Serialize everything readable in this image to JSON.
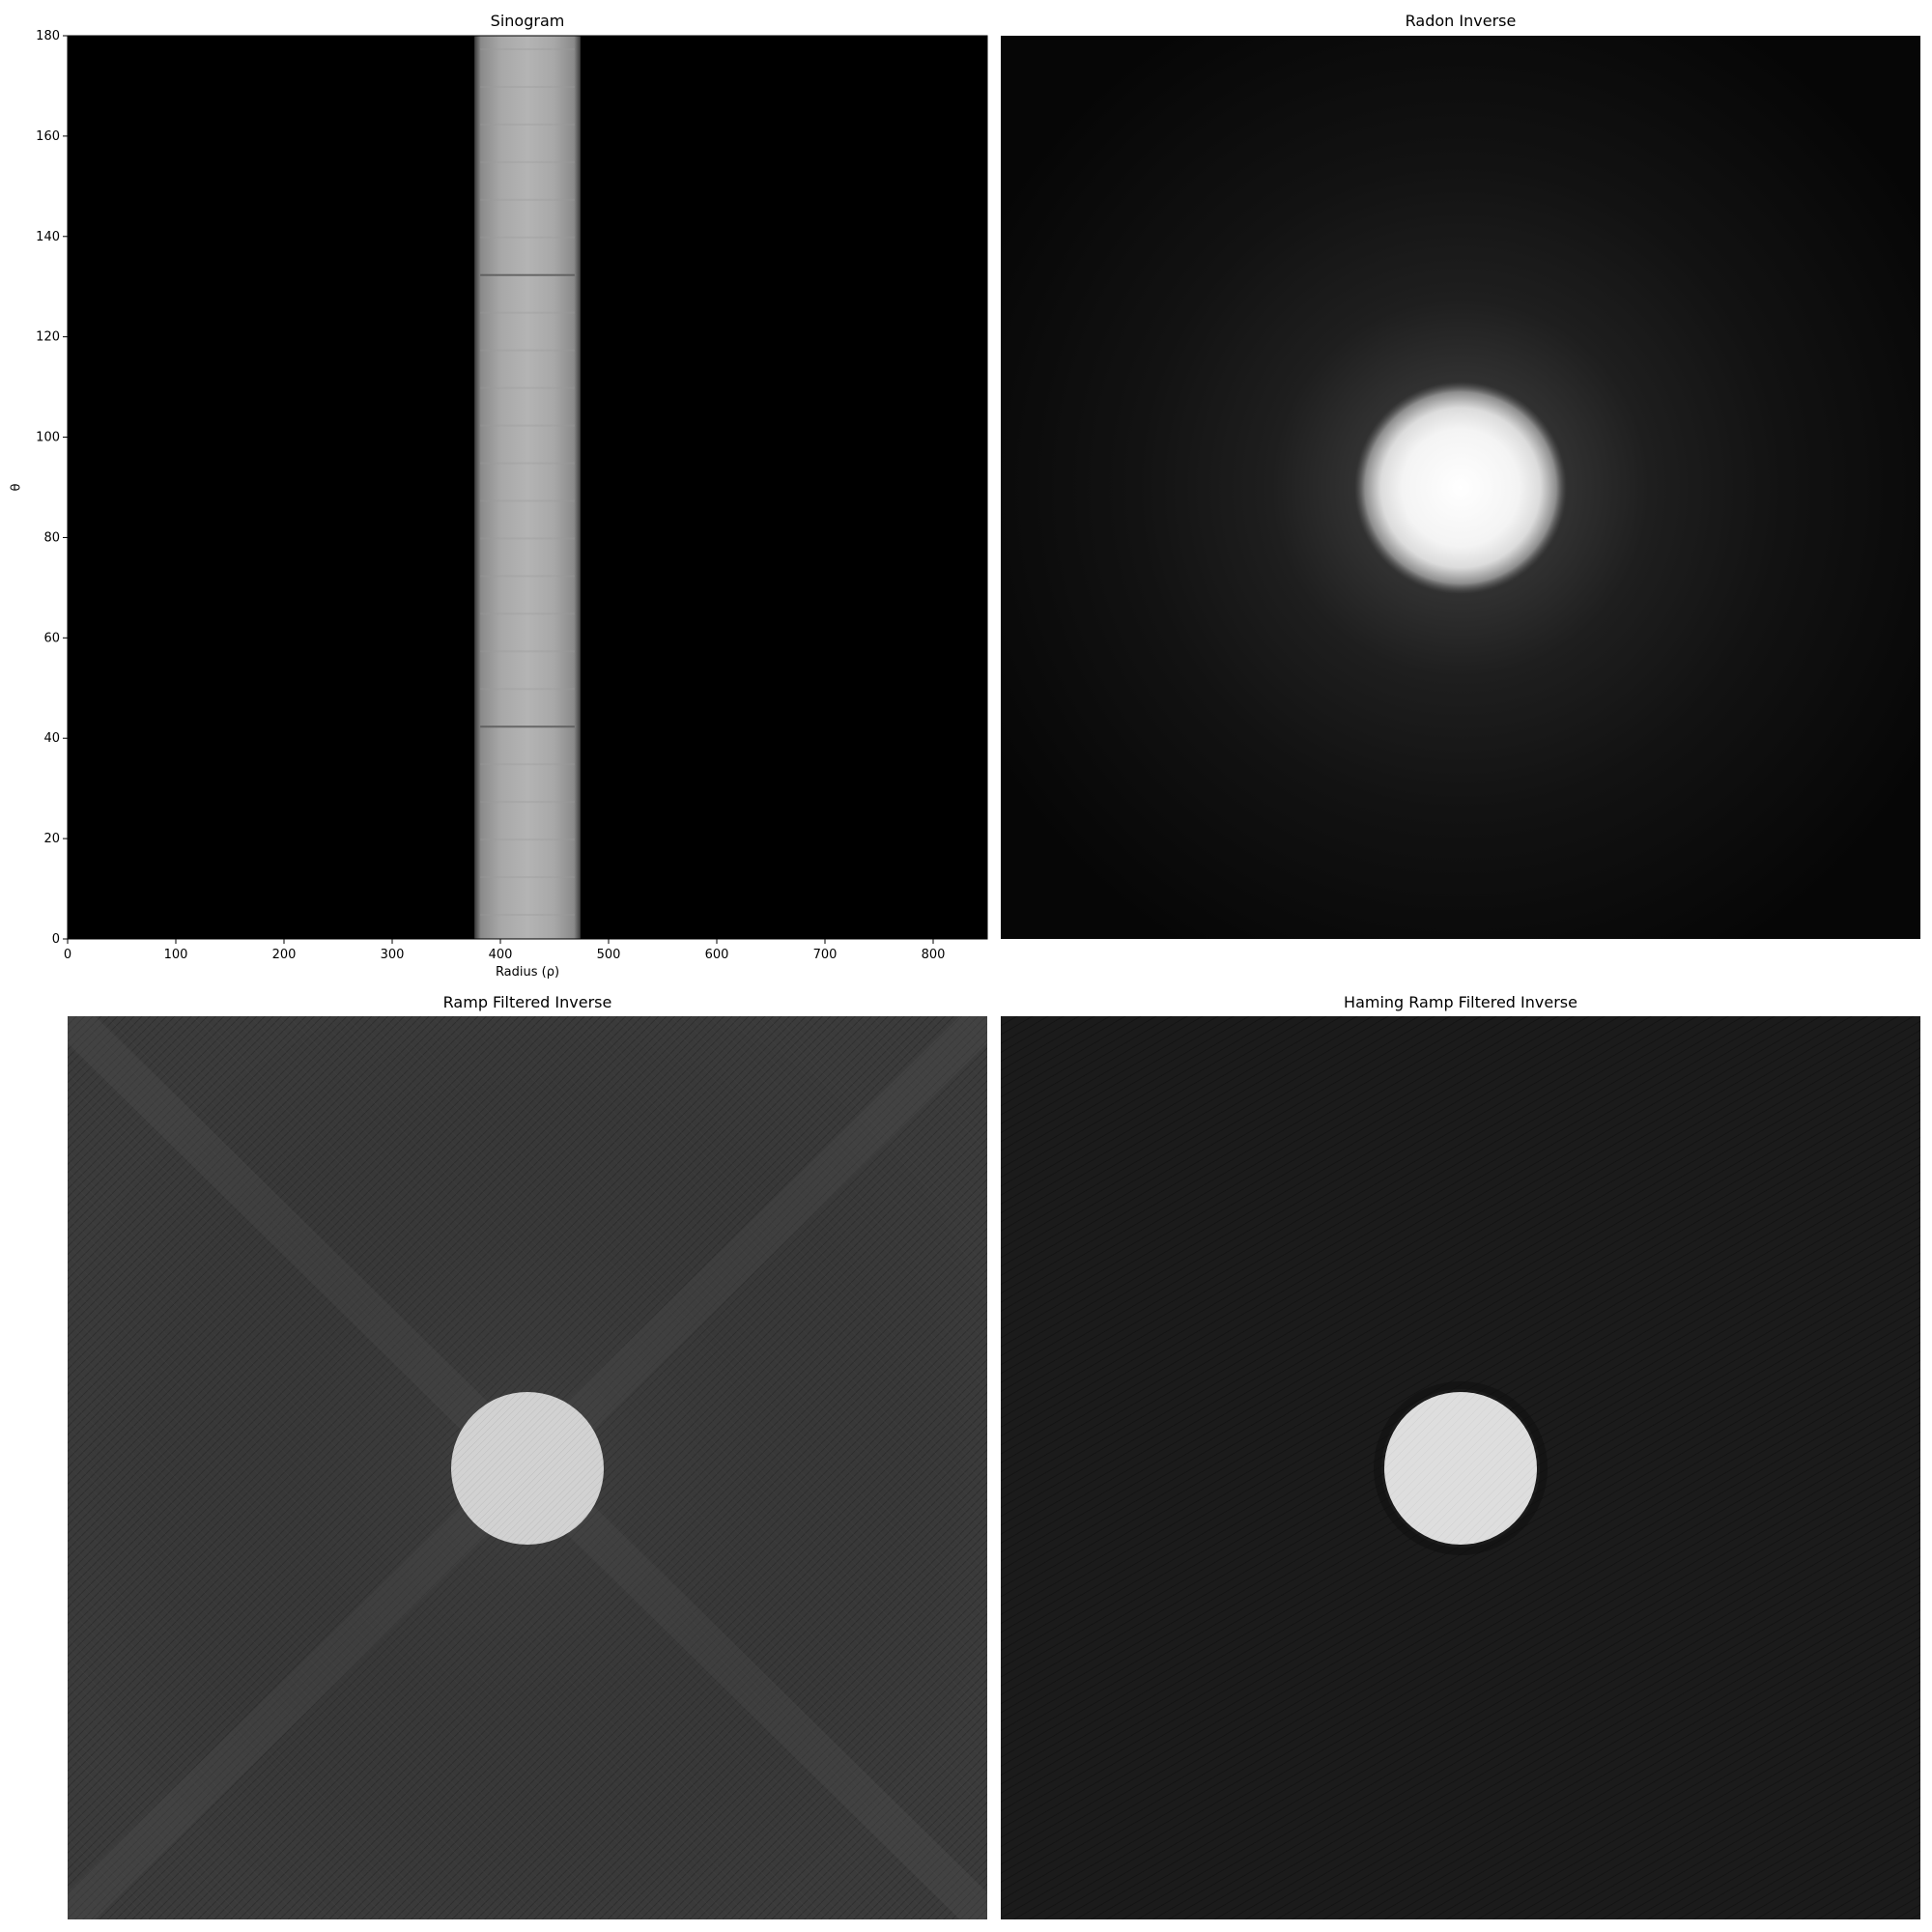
{
  "chart_data": [
    {
      "type": "heatmap",
      "title": "Sinogram",
      "xlabel": "Radius (ρ)",
      "ylabel": "θ",
      "xlim": [
        0,
        850
      ],
      "ylim": [
        0,
        180
      ],
      "xticks": [
        0,
        100,
        200,
        300,
        400,
        500,
        600,
        700,
        800
      ],
      "yticks": [
        0,
        20,
        40,
        60,
        80,
        100,
        120,
        140,
        160,
        180
      ],
      "band": {
        "x_start": 376,
        "x_end": 474
      },
      "colormap": "gray"
    },
    {
      "type": "heatmap",
      "title": "Radon Inverse",
      "colormap": "gray",
      "axes": "off"
    },
    {
      "type": "heatmap",
      "title": "Ramp Filtered Inverse",
      "colormap": "gray",
      "axes": "off"
    },
    {
      "type": "heatmap",
      "title": "Haming Ramp Filtered Inverse",
      "colormap": "gray",
      "axes": "off"
    }
  ]
}
